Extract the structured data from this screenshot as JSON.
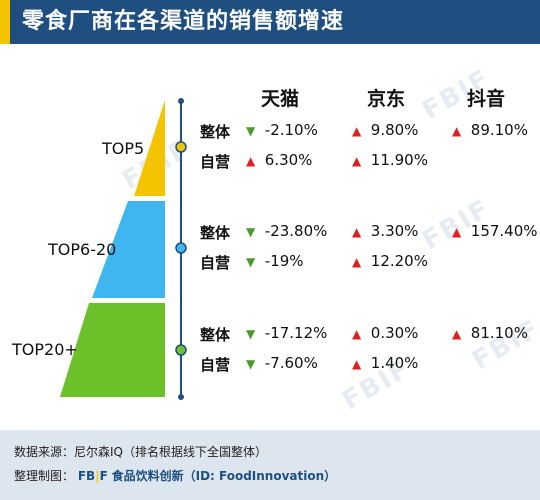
{
  "title": "零食厂商在各渠道的销售额增速",
  "columns": [
    "天猫",
    "京东",
    "抖音"
  ],
  "tiers": [
    {
      "label": "TOP5",
      "rows": [
        {
          "label": "整体",
          "cells": [
            {
              "dir": "down",
              "value": "-2.10%"
            },
            {
              "dir": "up",
              "value": "9.80%"
            },
            {
              "dir": "up",
              "value": "89.10%"
            }
          ]
        },
        {
          "label": "自营",
          "cells": [
            {
              "dir": "up",
              "value": "6.30%"
            },
            {
              "dir": "up",
              "value": "11.90%"
            },
            null
          ]
        }
      ]
    },
    {
      "label": "TOP6-20",
      "rows": [
        {
          "label": "整体",
          "cells": [
            {
              "dir": "down",
              "value": "-23.80%"
            },
            {
              "dir": "up",
              "value": "3.30%"
            },
            {
              "dir": "up",
              "value": "157.40%"
            }
          ]
        },
        {
          "label": "自营",
          "cells": [
            {
              "dir": "down",
              "value": "-19%"
            },
            {
              "dir": "up",
              "value": "12.20%"
            },
            null
          ]
        }
      ]
    },
    {
      "label": "TOP20+",
      "rows": [
        {
          "label": "整体",
          "cells": [
            {
              "dir": "down",
              "value": "-17.12%"
            },
            {
              "dir": "up",
              "value": "0.30%"
            },
            {
              "dir": "up",
              "value": "81.10%"
            }
          ]
        },
        {
          "label": "自营",
          "cells": [
            {
              "dir": "down",
              "value": "-7.60%"
            },
            {
              "dir": "up",
              "value": "1.40%"
            },
            null
          ]
        }
      ]
    }
  ],
  "colors": {
    "header": "#1e4f80",
    "accent": "#f5c400",
    "tier_fills": [
      "#f5c400",
      "#3fb6f0",
      "#6cc02a"
    ],
    "up_arrow": "#e02020",
    "down_arrow": "#4a9a2c",
    "axis": "#1e4f80",
    "footer_bg": "#dde6ef"
  },
  "watermark": "FBIF",
  "footer": {
    "source_label": "数据来源：",
    "source_value": "尼尔森IQ（排名根据线下全国整体）",
    "made_label": "整理制图：",
    "brand_fb": "FB",
    "brand_sep": "|",
    "brand_f": "F",
    "brand_name": "食品饮料创新（ID: FoodInnovation）"
  }
}
